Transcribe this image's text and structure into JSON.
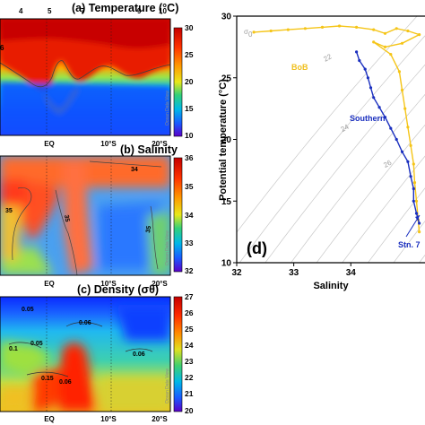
{
  "chart_data": [
    {
      "type": "heatmap",
      "panel": "(a)",
      "title": "(a) Temperature (°C)",
      "top_ticks": [
        "4",
        "5",
        "7",
        "9",
        "10"
      ],
      "bottom_ticks": [
        "EQ",
        "10°S",
        "20°S"
      ],
      "side_label": "6",
      "colorbar": {
        "ticks": [
          "30",
          "25",
          "20",
          "15",
          "10"
        ],
        "range": [
          10,
          30
        ]
      },
      "watermark": "Ocean Data View"
    },
    {
      "type": "heatmap",
      "panel": "(b)",
      "title": "(b) Salinity",
      "bottom_ticks": [
        "EQ",
        "10°S",
        "20°S"
      ],
      "colorbar": {
        "ticks": [
          "36",
          "35",
          "34",
          "33",
          "32"
        ],
        "range": [
          32,
          36
        ]
      },
      "contour_labels": [
        "34",
        "35",
        "35",
        "35"
      ],
      "watermark": "Ocean Data View"
    },
    {
      "type": "heatmap",
      "panel": "(c)",
      "title": "(c) Density (σθ)",
      "bottom_ticks": [
        "EQ",
        "10°S",
        "20°S"
      ],
      "colorbar": {
        "ticks": [
          "27",
          "26",
          "25",
          "24",
          "23",
          "22",
          "21",
          "20"
        ],
        "range": [
          20,
          27
        ]
      },
      "contour_labels": [
        "0.05",
        "0.06",
        "0.05",
        "0.1",
        "0.06",
        "0.15",
        "0.06"
      ],
      "watermark": "Ocean Data View"
    },
    {
      "type": "scatter",
      "panel": "(d)",
      "panel_label": "(d)",
      "xlabel": "Salinity",
      "ylabel": "Potential temperature (°C)",
      "xlim": [
        32,
        35.3
      ],
      "ylim": [
        10,
        30
      ],
      "xticks": [
        "32",
        "33",
        "34"
      ],
      "yticks": [
        "10",
        "15",
        "20",
        "25",
        "30"
      ],
      "sigma_symbol": "σ",
      "sigma_subscript": "0",
      "isopycnal_labels": [
        "22",
        "24",
        "26"
      ],
      "annotations": [
        "BoB",
        "Southern",
        "Stn. 7"
      ],
      "series": [
        {
          "name": "BoB",
          "color": "#f5c518",
          "points": [
            [
              32.3,
              28.7
            ],
            [
              32.6,
              28.8
            ],
            [
              32.9,
              28.9
            ],
            [
              33.2,
              29.0
            ],
            [
              33.5,
              29.1
            ],
            [
              33.8,
              29.2
            ],
            [
              34.1,
              29.1
            ],
            [
              34.4,
              28.9
            ],
            [
              34.6,
              28.6
            ],
            [
              34.8,
              29.0
            ],
            [
              35.0,
              28.8
            ],
            [
              35.2,
              28.5
            ],
            [
              34.9,
              27.8
            ],
            [
              34.6,
              27.5
            ],
            [
              34.4,
              27.9
            ],
            [
              34.7,
              26.9
            ],
            [
              34.85,
              25.5
            ],
            [
              34.9,
              24.0
            ],
            [
              34.95,
              22.5
            ],
            [
              35.0,
              21.0
            ],
            [
              35.05,
              19.5
            ],
            [
              35.1,
              18.0
            ],
            [
              35.12,
              16.5
            ],
            [
              35.15,
              15.0
            ],
            [
              35.18,
              13.5
            ],
            [
              35.2,
              12.5
            ]
          ]
        },
        {
          "name": "Southern",
          "color": "#1a2fbf",
          "points": [
            [
              34.1,
              27.1
            ],
            [
              34.15,
              26.4
            ],
            [
              34.25,
              25.7
            ],
            [
              34.3,
              25.0
            ],
            [
              34.35,
              24.2
            ],
            [
              34.4,
              23.4
            ],
            [
              34.5,
              22.6
            ],
            [
              34.6,
              21.8
            ],
            [
              34.7,
              20.9
            ],
            [
              34.8,
              20.0
            ],
            [
              34.9,
              19.0
            ],
            [
              35.0,
              18.2
            ],
            [
              35.05,
              17.0
            ],
            [
              35.1,
              16.0
            ],
            [
              35.1,
              15.0
            ],
            [
              35.15,
              14.0
            ],
            [
              35.2,
              13.2
            ]
          ]
        }
      ]
    }
  ]
}
